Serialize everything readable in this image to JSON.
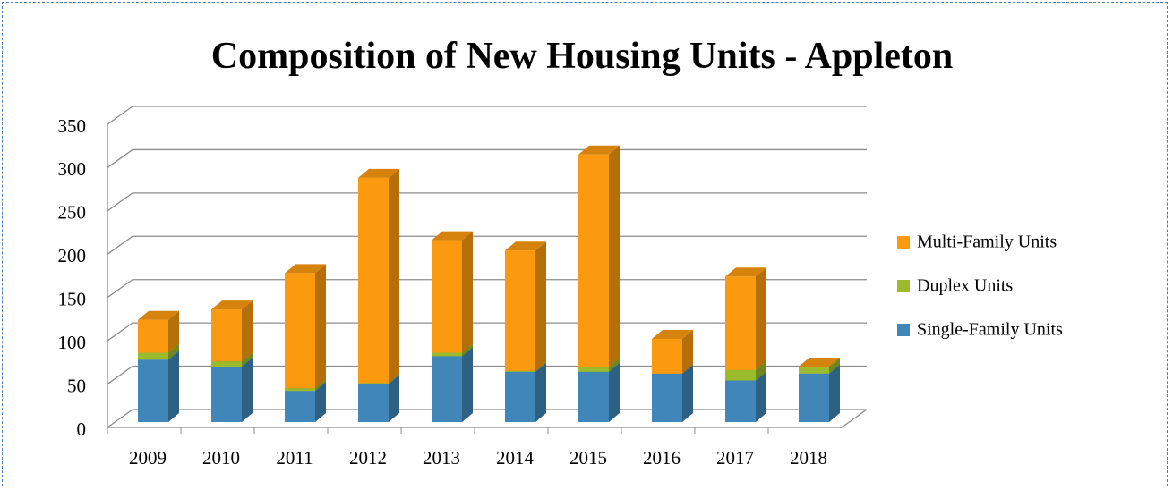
{
  "chart_data": {
    "type": "bar3d_stacked",
    "title": "Composition of New Housing Units - Appleton",
    "categories": [
      "2009",
      "2010",
      "2011",
      "2012",
      "2013",
      "2014",
      "2015",
      "2016",
      "2017",
      "2018"
    ],
    "series": [
      {
        "name": "Single-Family Units",
        "color": "#4086b8",
        "values": [
          72,
          64,
          36,
          44,
          76,
          58,
          58,
          56,
          48,
          56
        ]
      },
      {
        "name": "Duplex Units",
        "color": "#9bbb2c",
        "values": [
          8,
          6,
          3,
          1,
          4,
          1,
          6,
          0,
          12,
          8
        ]
      },
      {
        "name": "Multi-Family Units",
        "color": "#fb9a0e",
        "values": [
          38,
          60,
          133,
          237,
          130,
          139,
          245,
          40,
          108,
          0
        ]
      }
    ],
    "ylim": [
      0,
      350
    ],
    "yticks": [
      0,
      50,
      100,
      150,
      200,
      250,
      300,
      350
    ],
    "grid": true,
    "legend": "right"
  }
}
